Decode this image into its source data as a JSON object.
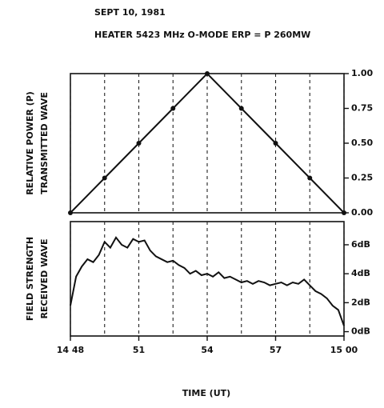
{
  "chart_data": [
    {
      "type": "line",
      "title": "SEPT 10, 1981",
      "subtitle": "HEATER 5423 MHz  O-MODE  ERP = P 260MW",
      "ylabel": [
        "RELATIVE POWER (P)",
        "TRANSMITTED WAVE"
      ],
      "x": [
        48,
        49.5,
        51,
        52.5,
        54,
        55.5,
        57,
        58.5,
        60
      ],
      "values": [
        0,
        0.25,
        0.5,
        0.75,
        1.0,
        0.75,
        0.5,
        0.25,
        0
      ],
      "color": "#111111",
      "markers": true,
      "xlim": [
        48,
        60
      ],
      "ylim": [
        0,
        1.0
      ],
      "yticks": [
        {
          "value": 0,
          "label": "0.00"
        },
        {
          "value": 0.25,
          "label": "0.25"
        },
        {
          "value": 0.5,
          "label": "0.50"
        },
        {
          "value": 0.75,
          "label": "0.75"
        },
        {
          "value": 1.0,
          "label": "1.00"
        }
      ]
    },
    {
      "type": "line",
      "ylabel": [
        "FIELD STRENGTH",
        "RECEIVED WAVE"
      ],
      "xlabel": "TIME (UT)",
      "x": [
        48,
        48.25,
        48.5,
        48.75,
        49,
        49.25,
        49.5,
        49.75,
        50,
        50.25,
        50.5,
        50.75,
        51,
        51.25,
        51.5,
        51.75,
        52,
        52.25,
        52.5,
        52.75,
        53,
        53.25,
        53.5,
        53.75,
        54,
        54.25,
        54.5,
        54.75,
        55,
        55.25,
        55.5,
        55.75,
        56,
        56.25,
        56.5,
        56.75,
        57,
        57.25,
        57.5,
        57.75,
        58,
        58.25,
        58.5,
        58.75,
        59,
        59.25,
        59.5,
        59.75,
        60
      ],
      "values": [
        1.8,
        3.8,
        4.5,
        5.0,
        4.8,
        5.3,
        6.2,
        5.8,
        6.5,
        6.0,
        5.8,
        6.4,
        6.2,
        6.3,
        5.6,
        5.2,
        5.0,
        4.8,
        4.9,
        4.6,
        4.4,
        4.0,
        4.2,
        3.9,
        4.0,
        3.8,
        4.1,
        3.7,
        3.8,
        3.6,
        3.4,
        3.5,
        3.3,
        3.5,
        3.4,
        3.2,
        3.3,
        3.4,
        3.2,
        3.4,
        3.3,
        3.6,
        3.2,
        2.8,
        2.6,
        2.3,
        1.8,
        1.5,
        0.4
      ],
      "color": "#111111",
      "markers": false,
      "xlim": [
        48,
        60
      ],
      "xticks": [
        {
          "value": 48,
          "label": "14 48"
        },
        51,
        54,
        57,
        {
          "value": 60,
          "label": "15 00"
        }
      ],
      "ylim": [
        -0.3,
        7.6
      ],
      "yticks": [
        {
          "value": 0,
          "label": "0dB"
        },
        {
          "value": 2,
          "label": "2dB"
        },
        {
          "value": 4,
          "label": "4dB"
        },
        {
          "value": 6,
          "label": "6dB"
        }
      ]
    }
  ]
}
